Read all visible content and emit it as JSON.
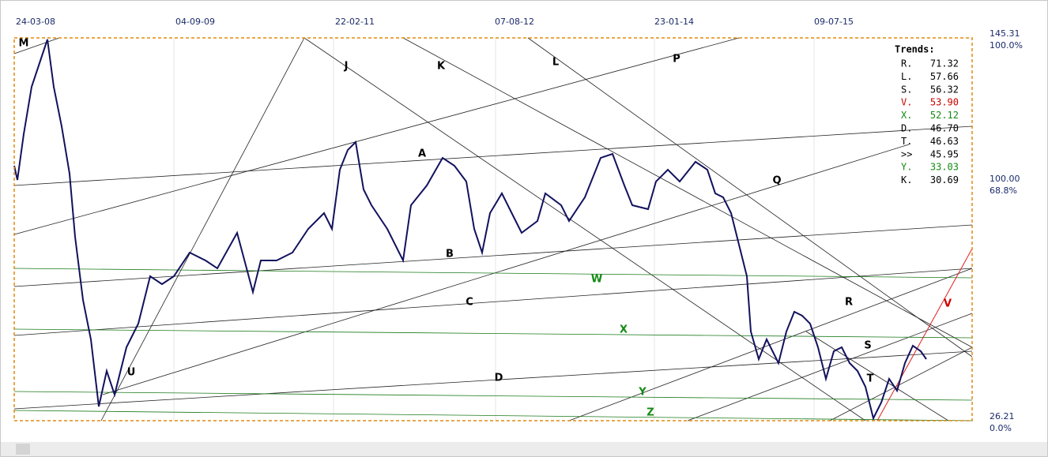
{
  "x_axis": {
    "labels": [
      "24-03-08",
      "04-09-09",
      "22-02-11",
      "07-08-12",
      "23-01-14",
      "09-07-15"
    ]
  },
  "y_axis": {
    "top": {
      "price": "145.31",
      "percent": "100.0%"
    },
    "middle": {
      "price": "100.00",
      "percent": "68.8%"
    },
    "bottom": {
      "price": "26.21",
      "percent": "0.0%"
    }
  },
  "trends": {
    "title": "Trends:",
    "items": [
      {
        "key": "R.",
        "value": "71.32",
        "color": "#000000"
      },
      {
        "key": "L.",
        "value": "57.66",
        "color": "#000000"
      },
      {
        "key": "S.",
        "value": "56.32",
        "color": "#000000"
      },
      {
        "key": "V.",
        "value": "53.90",
        "color": "#cc0000"
      },
      {
        "key": "X.",
        "value": "52.12",
        "color": "#138a13"
      },
      {
        "key": "D.",
        "value": "46.70",
        "color": "#000000"
      },
      {
        "key": "T.",
        "value": "46.63",
        "color": "#000000"
      },
      {
        "key": ">>",
        "value": "45.95",
        "color": "#000000"
      },
      {
        "key": "Y.",
        "value": "33.03",
        "color": "#138a13"
      },
      {
        "key": "K.",
        "value": "30.69",
        "color": "#000000"
      }
    ]
  },
  "line_labels": [
    {
      "text": "M",
      "color": "#000000"
    },
    {
      "text": "J",
      "color": "#000000"
    },
    {
      "text": "K",
      "color": "#000000"
    },
    {
      "text": "L",
      "color": "#000000"
    },
    {
      "text": "P",
      "color": "#000000"
    },
    {
      "text": "A",
      "color": "#000000"
    },
    {
      "text": "Q",
      "color": "#000000"
    },
    {
      "text": "B",
      "color": "#000000"
    },
    {
      "text": "W",
      "color": "#138a13"
    },
    {
      "text": "C",
      "color": "#000000"
    },
    {
      "text": "R",
      "color": "#000000"
    },
    {
      "text": "V",
      "color": "#cc0000"
    },
    {
      "text": "X",
      "color": "#138a13"
    },
    {
      "text": "S",
      "color": "#000000"
    },
    {
      "text": "U",
      "color": "#000000"
    },
    {
      "text": "D",
      "color": "#000000"
    },
    {
      "text": "T",
      "color": "#000000"
    },
    {
      "text": "Y",
      "color": "#138a13"
    },
    {
      "text": "Z",
      "color": "#138a13"
    }
  ]
}
